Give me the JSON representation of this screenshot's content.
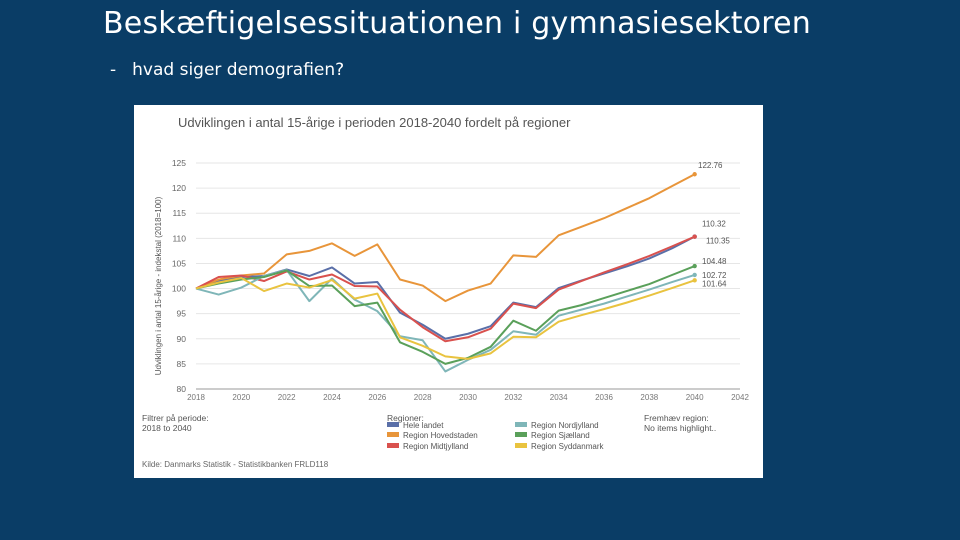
{
  "slide": {
    "title": "Beskæftigelsessituationen i gymnasiesektoren",
    "bullet": "-",
    "subtitle": "hvad siger demografien?"
  },
  "chart_data": {
    "type": "line",
    "title": "Udviklingen i antal 15-årige i perioden 2018-2040 fordelt på regioner",
    "ylabel": "Udviklingen i antal 15-årige - indekstal (2018=100)",
    "xlabel": "",
    "ylim": [
      80,
      125
    ],
    "xlim": [
      2018,
      2042
    ],
    "y_ticks": [
      80,
      85,
      90,
      95,
      100,
      105,
      110,
      115,
      120,
      125
    ],
    "x_ticks": [
      2018,
      2020,
      2022,
      2024,
      2026,
      2028,
      2030,
      2032,
      2034,
      2036,
      2038,
      2040,
      2042
    ],
    "x": [
      2018,
      2019,
      2020,
      2021,
      2022,
      2023,
      2024,
      2025,
      2026,
      2027,
      2028,
      2029,
      2030,
      2031,
      2032,
      2033,
      2034,
      2035,
      2036,
      2037,
      2038,
      2039,
      2040
    ],
    "series": [
      {
        "name": "Hele landet",
        "color": "#5a6fa8",
        "values": [
          100,
          101.5,
          102.3,
          102.5,
          103.8,
          102.5,
          104.2,
          101.0,
          101.3,
          95.2,
          92.8,
          90.0,
          91.0,
          92.5,
          97.2,
          96.3,
          100.1,
          101.6,
          103.0,
          104.4,
          106.0,
          108.0,
          110.35
        ]
      },
      {
        "name": "Region Hovedstaden",
        "color": "#e8953a",
        "values": [
          100,
          101.8,
          102.6,
          103.0,
          106.8,
          107.5,
          109.0,
          106.5,
          108.8,
          101.8,
          100.6,
          97.5,
          99.6,
          101.0,
          106.6,
          106.3,
          110.6,
          112.3,
          114.0,
          116.0,
          118.0,
          120.4,
          122.76
        ]
      },
      {
        "name": "Region Midtjylland",
        "color": "#d9514e",
        "values": [
          100,
          102.3,
          102.6,
          101.5,
          103.4,
          101.8,
          102.8,
          100.5,
          100.4,
          95.8,
          92.3,
          89.5,
          90.3,
          92.0,
          97.0,
          96.1,
          99.8,
          101.5,
          103.2,
          104.8,
          106.5,
          108.4,
          110.32
        ]
      },
      {
        "name": "Region Nordjylland",
        "color": "#7fb6b8",
        "values": [
          100,
          98.8,
          100.2,
          102.5,
          103.7,
          97.5,
          102.0,
          97.8,
          95.5,
          90.5,
          89.7,
          83.5,
          85.8,
          87.8,
          91.5,
          90.8,
          94.6,
          95.8,
          97.0,
          98.4,
          99.8,
          101.3,
          102.72
        ]
      },
      {
        "name": "Region Sjælland",
        "color": "#5aa05a",
        "values": [
          100,
          101.0,
          101.8,
          102.3,
          103.6,
          100.5,
          100.6,
          96.5,
          97.2,
          89.3,
          87.4,
          85.0,
          86.2,
          88.4,
          93.6,
          91.6,
          95.6,
          96.7,
          98.1,
          99.5,
          100.9,
          102.7,
          104.48
        ]
      },
      {
        "name": "Region Syddanmark",
        "color": "#e9c33f",
        "values": [
          100,
          101.2,
          102.1,
          99.5,
          101.0,
          100.2,
          101.7,
          98.0,
          99.0,
          90.3,
          88.6,
          86.5,
          86.0,
          87.1,
          90.4,
          90.3,
          93.4,
          94.7,
          95.9,
          97.2,
          98.6,
          100.1,
          101.64
        ]
      }
    ],
    "end_labels": [
      "122.76",
      "110.32",
      "110.35",
      "104.48",
      "102.72",
      "101.64"
    ],
    "filter_label": "Filtrer på periode",
    "filter_value": "2018 to 2040",
    "legend_title": "Regioner:",
    "highlight_title": "Fremhæv region:",
    "highlight_value": "No items highlight..",
    "source": "Kilde: Danmarks Statistik - Statistikbanken FRLD118",
    "legend_placement": "bottom"
  }
}
